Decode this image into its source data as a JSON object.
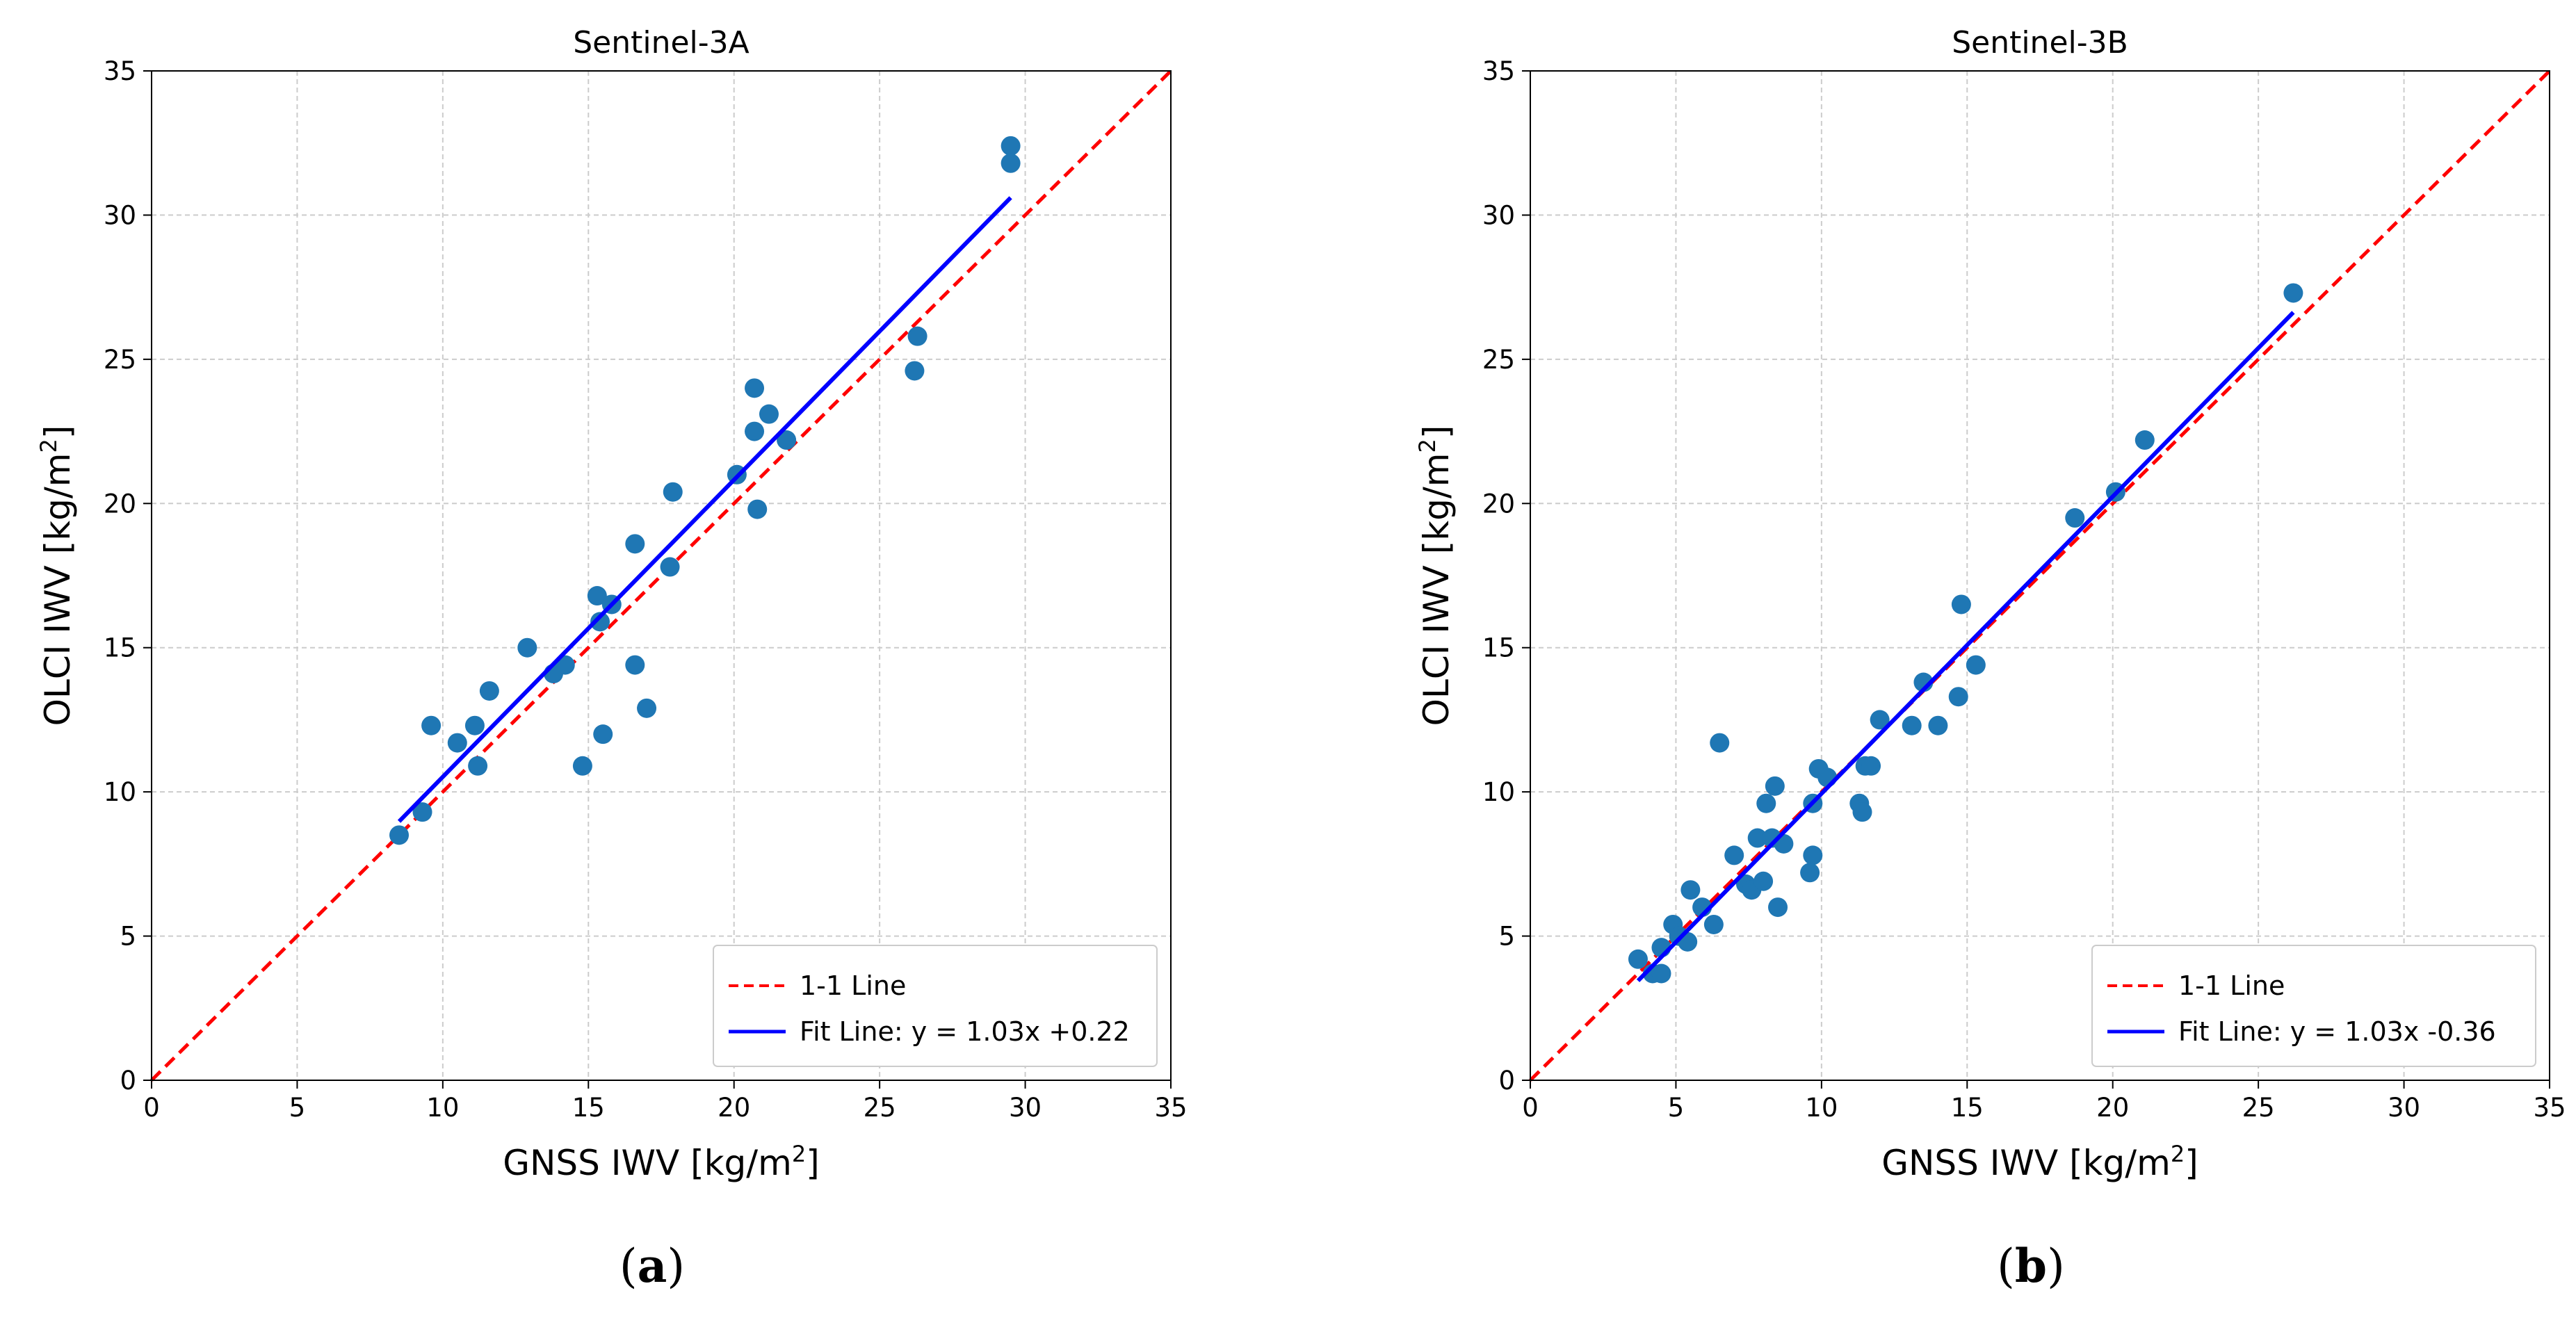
{
  "colors": {
    "point": "#1f77b4",
    "fit_line": "#0000ff",
    "one_to_one": "#ff0000",
    "grid": "#cccccc"
  },
  "chart_data": [
    {
      "type": "scatter",
      "title": "Sentinel-3A",
      "xlabel_main": "GNSS IWV [kg/m",
      "xlabel_sup": "2",
      "xlabel_end": "]",
      "ylabel_main": "OLCI IWV [kg/m",
      "ylabel_sup": "2",
      "ylabel_end": "]",
      "xlim": [
        0,
        35
      ],
      "ylim": [
        0,
        35
      ],
      "xticks": [
        "0",
        "5",
        "10",
        "15",
        "20",
        "25",
        "30",
        "35"
      ],
      "yticks": [
        "0",
        "5",
        "10",
        "15",
        "20",
        "25",
        "30",
        "35"
      ],
      "grid": true,
      "legend_position": "lower-right",
      "legend": [
        "1-1 Line",
        "Fit Line: y = 1.03x +0.22"
      ],
      "one_to_one": {
        "x": [
          0,
          35
        ],
        "y": [
          0,
          35
        ]
      },
      "fit_line": {
        "slope": 1.03,
        "intercept": 0.22,
        "x_range": [
          8.5,
          29.5
        ]
      },
      "caption": "a",
      "points": [
        [
          8.5,
          8.5
        ],
        [
          9.3,
          9.3
        ],
        [
          9.6,
          12.3
        ],
        [
          10.5,
          11.7
        ],
        [
          11.1,
          12.3
        ],
        [
          11.2,
          10.9
        ],
        [
          11.6,
          13.5
        ],
        [
          12.9,
          15.0
        ],
        [
          13.8,
          14.1
        ],
        [
          14.2,
          14.4
        ],
        [
          14.8,
          10.9
        ],
        [
          15.3,
          16.8
        ],
        [
          15.4,
          15.9
        ],
        [
          15.5,
          12.0
        ],
        [
          15.8,
          16.5
        ],
        [
          16.6,
          18.6
        ],
        [
          16.6,
          14.4
        ],
        [
          17.0,
          12.9
        ],
        [
          17.8,
          17.8
        ],
        [
          17.9,
          20.4
        ],
        [
          20.1,
          21.0
        ],
        [
          20.7,
          24.0
        ],
        [
          20.7,
          22.5
        ],
        [
          20.8,
          19.8
        ],
        [
          21.2,
          23.1
        ],
        [
          21.8,
          22.2
        ],
        [
          26.2,
          24.6
        ],
        [
          26.3,
          25.8
        ],
        [
          29.5,
          32.4
        ],
        [
          29.5,
          31.8
        ]
      ]
    },
    {
      "type": "scatter",
      "title": "Sentinel-3B",
      "xlabel_main": "GNSS IWV [kg/m",
      "xlabel_sup": "2",
      "xlabel_end": "]",
      "ylabel_main": "OLCI IWV [kg/m",
      "ylabel_sup": "2",
      "ylabel_end": "]",
      "xlim": [
        0,
        35
      ],
      "ylim": [
        0,
        35
      ],
      "xticks": [
        "0",
        "5",
        "10",
        "15",
        "20",
        "25",
        "30",
        "35"
      ],
      "yticks": [
        "0",
        "5",
        "10",
        "15",
        "20",
        "25",
        "30",
        "35"
      ],
      "grid": true,
      "legend_position": "lower-right",
      "legend": [
        "1-1 Line",
        "Fit Line: y = 1.03x -0.36"
      ],
      "one_to_one": {
        "x": [
          0,
          35
        ],
        "y": [
          0,
          35
        ]
      },
      "fit_line": {
        "slope": 1.03,
        "intercept": -0.36,
        "x_range": [
          3.7,
          26.2
        ]
      },
      "caption": "b",
      "points": [
        [
          3.7,
          4.2
        ],
        [
          4.2,
          3.7
        ],
        [
          4.5,
          4.6
        ],
        [
          4.5,
          3.7
        ],
        [
          4.9,
          5.4
        ],
        [
          5.1,
          5.0
        ],
        [
          5.4,
          4.8
        ],
        [
          5.5,
          6.6
        ],
        [
          5.9,
          6.0
        ],
        [
          6.3,
          5.4
        ],
        [
          6.5,
          11.7
        ],
        [
          7.0,
          7.8
        ],
        [
          7.4,
          6.8
        ],
        [
          7.6,
          6.6
        ],
        [
          7.8,
          8.4
        ],
        [
          8.0,
          6.9
        ],
        [
          8.1,
          9.6
        ],
        [
          8.3,
          8.4
        ],
        [
          8.4,
          10.2
        ],
        [
          8.5,
          6.0
        ],
        [
          8.7,
          8.2
        ],
        [
          9.6,
          7.2
        ],
        [
          9.7,
          7.8
        ],
        [
          9.7,
          9.6
        ],
        [
          9.9,
          10.8
        ],
        [
          10.2,
          10.5
        ],
        [
          11.3,
          9.6
        ],
        [
          11.4,
          9.3
        ],
        [
          11.5,
          10.9
        ],
        [
          11.7,
          10.9
        ],
        [
          12.0,
          12.5
        ],
        [
          13.1,
          12.3
        ],
        [
          13.5,
          13.8
        ],
        [
          14.0,
          12.3
        ],
        [
          14.7,
          13.3
        ],
        [
          14.8,
          16.5
        ],
        [
          15.3,
          14.4
        ],
        [
          18.7,
          19.5
        ],
        [
          20.1,
          20.4
        ],
        [
          21.1,
          22.2
        ],
        [
          26.2,
          27.3
        ]
      ]
    }
  ]
}
